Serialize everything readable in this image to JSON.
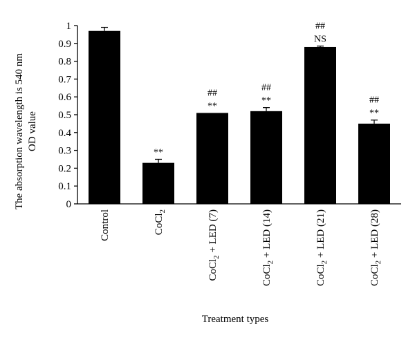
{
  "chart_data": {
    "type": "bar",
    "categories": [
      {
        "main": "Control",
        "sub": "",
        "rest": ""
      },
      {
        "main": "CoCl",
        "sub": "2",
        "rest": ""
      },
      {
        "main": "CoCl",
        "sub": "2",
        "rest": " + LED (7)"
      },
      {
        "main": "CoCl",
        "sub": "2",
        "rest": " + LED (14)"
      },
      {
        "main": "CoCl",
        "sub": "2",
        "rest": " + LED (21)"
      },
      {
        "main": "CoCl",
        "sub": "2",
        "rest": " + LED (28)"
      }
    ],
    "values": [
      0.97,
      0.23,
      0.51,
      0.52,
      0.88,
      0.45
    ],
    "errors": [
      0.02,
      0.02,
      0.0,
      0.02,
      0.005,
      0.02
    ],
    "annotations": [
      [],
      [
        "**"
      ],
      [
        "##",
        "**"
      ],
      [
        "##",
        "**"
      ],
      [
        "##",
        "NS"
      ],
      [
        "##",
        "**"
      ]
    ],
    "ylabel_line1": "The absorption wavelength is 540 nm",
    "ylabel_line2": "OD value",
    "xlabel": "Treatment types",
    "ylim": [
      0,
      1
    ],
    "yticks": [
      "0",
      "0.1",
      "0.2",
      "0.3",
      "0.4",
      "0.5",
      "0.6",
      "0.7",
      "0.8",
      "0.9",
      "1"
    ],
    "bar_color": "#000000",
    "grid": false,
    "legend": "none"
  }
}
